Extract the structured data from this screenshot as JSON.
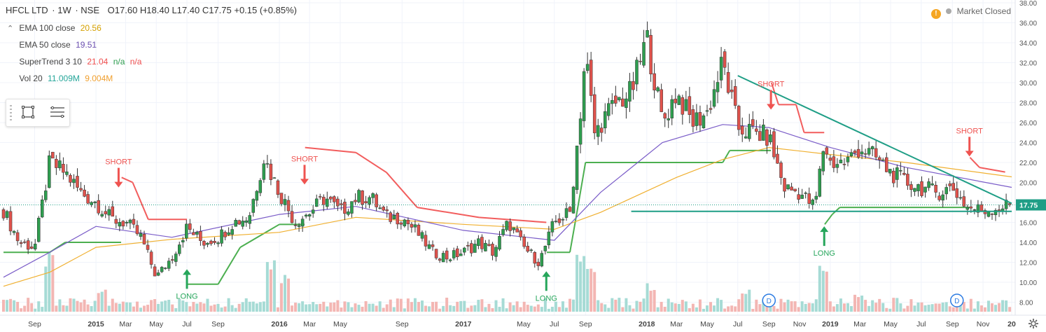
{
  "header": {
    "symbol": "HFCL LTD",
    "interval": "1W",
    "exchange": "NSE",
    "ohlc": "O17.60  H18.40  L17.40  C17.75  +0.15 (+0.85%)"
  },
  "indicators": [
    {
      "name": "EMA 100 close",
      "value": "20.56",
      "value2": "",
      "value3": "",
      "color": "#e0a000"
    },
    {
      "name": "EMA 50 close",
      "value": "19.51",
      "value2": "",
      "value3": "",
      "color": "#6b4fb0"
    },
    {
      "name": "SuperTrend 3 10",
      "value": "21.04",
      "value2": "n/a",
      "value3": "n/a",
      "color": "#ef4f4f"
    },
    {
      "name": "Vol 20",
      "value": "11.009M",
      "value2": "9.004M",
      "value3": "",
      "color": "#26a69a"
    }
  ],
  "market_status": "Market Closed",
  "price_tag": "17.75",
  "colors": {
    "up": "#2e9e4f",
    "down": "#e0524c",
    "ema100": "#f0b030",
    "ema50": "#7a5cc8",
    "st_up": "#4caf50",
    "st_down": "#f25d5d",
    "trend": "#1f9e86",
    "vol": "#7fc9c3",
    "price_tag": "#1f9e86"
  },
  "chart_data": {
    "type": "candlestick",
    "title": "HFCL LTD · 1W · NSE",
    "ylim": [
      7.4,
      38.0
    ],
    "y_ticks": [
      "8.00",
      "10.00",
      "12.00",
      "14.00",
      "16.00",
      "18.00",
      "20.00",
      "22.00",
      "24.00",
      "26.00",
      "28.00",
      "30.00",
      "32.00",
      "34.00",
      "36.00",
      "38.00"
    ],
    "x_ticks": [
      "Sep",
      "2015",
      "Mar",
      "May",
      "Jul",
      "Sep",
      "2016",
      "Mar",
      "May",
      "Sep",
      "2017",
      "May",
      "Jul",
      "Sep",
      "2018",
      "Mar",
      "May",
      "Jul",
      "Sep",
      "Nov",
      "2019",
      "Mar",
      "May",
      "Jul",
      "Sep",
      "Nov",
      "20"
    ],
    "close_anchors": [
      {
        "d": "2014-07-01",
        "v": 17.2
      },
      {
        "d": "2014-08-01",
        "v": 14.0
      },
      {
        "d": "2014-09-01",
        "v": 13.5
      },
      {
        "d": "2014-10-01",
        "v": 22.0
      },
      {
        "d": "2014-11-01",
        "v": 21.0
      },
      {
        "d": "2014-12-01",
        "v": 19.0
      },
      {
        "d": "2015-01-01",
        "v": 18.0
      },
      {
        "d": "2015-02-01",
        "v": 16.3
      },
      {
        "d": "2015-03-01",
        "v": 16.0
      },
      {
        "d": "2015-04-01",
        "v": 14.5
      },
      {
        "d": "2015-05-01",
        "v": 10.5
      },
      {
        "d": "2015-06-01",
        "v": 12.5
      },
      {
        "d": "2015-07-01",
        "v": 15.5
      },
      {
        "d": "2015-08-01",
        "v": 14.0
      },
      {
        "d": "2015-09-01",
        "v": 14.5
      },
      {
        "d": "2015-10-01",
        "v": 16.0
      },
      {
        "d": "2015-11-01",
        "v": 16.5
      },
      {
        "d": "2015-12-01",
        "v": 22.5
      },
      {
        "d": "2016-01-01",
        "v": 19.0
      },
      {
        "d": "2016-02-01",
        "v": 16.0
      },
      {
        "d": "2016-03-01",
        "v": 17.0
      },
      {
        "d": "2016-04-01",
        "v": 18.5
      },
      {
        "d": "2016-05-01",
        "v": 17.0
      },
      {
        "d": "2016-06-01",
        "v": 18.5
      },
      {
        "d": "2016-07-01",
        "v": 18.5
      },
      {
        "d": "2016-08-01",
        "v": 16.5
      },
      {
        "d": "2016-09-01",
        "v": 16.5
      },
      {
        "d": "2016-10-01",
        "v": 15.0
      },
      {
        "d": "2016-11-01",
        "v": 13.0
      },
      {
        "d": "2016-12-01",
        "v": 12.5
      },
      {
        "d": "2017-01-01",
        "v": 13.0
      },
      {
        "d": "2017-02-01",
        "v": 14.0
      },
      {
        "d": "2017-03-01",
        "v": 13.0
      },
      {
        "d": "2017-04-01",
        "v": 16.0
      },
      {
        "d": "2017-05-01",
        "v": 13.5
      },
      {
        "d": "2017-06-01",
        "v": 12.0
      },
      {
        "d": "2017-07-01",
        "v": 16.0
      },
      {
        "d": "2017-08-01",
        "v": 17.0
      },
      {
        "d": "2017-08-20",
        "v": 26.0
      },
      {
        "d": "2017-09-01",
        "v": 33.0
      },
      {
        "d": "2017-09-20",
        "v": 24.5
      },
      {
        "d": "2017-10-01",
        "v": 26.0
      },
      {
        "d": "2017-11-01",
        "v": 28.0
      },
      {
        "d": "2017-12-01",
        "v": 29.0
      },
      {
        "d": "2018-01-01",
        "v": 34.5
      },
      {
        "d": "2018-02-01",
        "v": 26.0
      },
      {
        "d": "2018-03-01",
        "v": 29.0
      },
      {
        "d": "2018-04-01",
        "v": 26.0
      },
      {
        "d": "2018-05-01",
        "v": 27.0
      },
      {
        "d": "2018-06-01",
        "v": 32.0
      },
      {
        "d": "2018-07-01",
        "v": 25.5
      },
      {
        "d": "2018-08-01",
        "v": 25.0
      },
      {
        "d": "2018-09-01",
        "v": 24.5
      },
      {
        "d": "2018-10-01",
        "v": 19.5
      },
      {
        "d": "2018-11-01",
        "v": 19.0
      },
      {
        "d": "2018-12-01",
        "v": 17.5
      },
      {
        "d": "2018-12-20",
        "v": 24.0
      },
      {
        "d": "2019-01-01",
        "v": 22.0
      },
      {
        "d": "2019-02-01",
        "v": 22.0
      },
      {
        "d": "2019-03-01",
        "v": 23.5
      },
      {
        "d": "2019-04-01",
        "v": 22.5
      },
      {
        "d": "2019-05-01",
        "v": 21.0
      },
      {
        "d": "2019-06-01",
        "v": 20.0
      },
      {
        "d": "2019-07-01",
        "v": 19.5
      },
      {
        "d": "2019-08-01",
        "v": 19.0
      },
      {
        "d": "2019-09-01",
        "v": 19.5
      },
      {
        "d": "2019-10-01",
        "v": 17.5
      },
      {
        "d": "2019-11-01",
        "v": 17.2
      },
      {
        "d": "2019-12-01",
        "v": 17.5
      },
      {
        "d": "2019-12-28",
        "v": 17.75
      }
    ],
    "supertrend": [
      {
        "d": "2014-07-01",
        "v": 13.0,
        "dir": "up"
      },
      {
        "d": "2014-10-01",
        "v": 13.0,
        "dir": "up"
      },
      {
        "d": "2014-11-01",
        "v": 14.0,
        "dir": "up"
      },
      {
        "d": "2015-02-20",
        "v": 14.0,
        "dir": "up"
      },
      {
        "d": "2015-02-21",
        "v": 20.5,
        "dir": "down"
      },
      {
        "d": "2015-03-15",
        "v": 20.0,
        "dir": "down"
      },
      {
        "d": "2015-04-15",
        "v": 16.3,
        "dir": "down"
      },
      {
        "d": "2015-07-01",
        "v": 16.3,
        "dir": "down"
      },
      {
        "d": "2015-07-02",
        "v": 9.8,
        "dir": "up"
      },
      {
        "d": "2015-09-01",
        "v": 9.8,
        "dir": "up"
      },
      {
        "d": "2015-10-15",
        "v": 13.5,
        "dir": "up"
      },
      {
        "d": "2016-01-01",
        "v": 15.8,
        "dir": "up"
      },
      {
        "d": "2016-02-20",
        "v": 15.8,
        "dir": "up"
      },
      {
        "d": "2016-02-21",
        "v": 23.5,
        "dir": "down"
      },
      {
        "d": "2016-06-01",
        "v": 23.0,
        "dir": "down"
      },
      {
        "d": "2016-08-01",
        "v": 21.0,
        "dir": "down"
      },
      {
        "d": "2016-10-01",
        "v": 17.5,
        "dir": "down"
      },
      {
        "d": "2017-02-01",
        "v": 16.5,
        "dir": "down"
      },
      {
        "d": "2017-06-15",
        "v": 16.0,
        "dir": "down"
      },
      {
        "d": "2017-06-16",
        "v": 13.0,
        "dir": "up"
      },
      {
        "d": "2017-08-01",
        "v": 13.0,
        "dir": "up"
      },
      {
        "d": "2017-08-15",
        "v": 17.0,
        "dir": "up"
      },
      {
        "d": "2017-09-01",
        "v": 22.0,
        "dir": "up"
      },
      {
        "d": "2018-06-01",
        "v": 22.0,
        "dir": "up"
      },
      {
        "d": "2018-06-15",
        "v": 23.2,
        "dir": "up"
      },
      {
        "d": "2018-09-05",
        "v": 23.2,
        "dir": "up"
      },
      {
        "d": "2018-09-06",
        "v": 30.0,
        "dir": "down"
      },
      {
        "d": "2018-09-20",
        "v": 27.8,
        "dir": "down"
      },
      {
        "d": "2018-10-25",
        "v": 27.8,
        "dir": "down"
      },
      {
        "d": "2018-11-10",
        "v": 25.0,
        "dir": "down"
      },
      {
        "d": "2018-12-20",
        "v": 25.0,
        "dir": "down"
      },
      {
        "d": "2018-12-21",
        "v": 15.8,
        "dir": "up"
      },
      {
        "d": "2019-01-05",
        "v": 16.8,
        "dir": "up"
      },
      {
        "d": "2019-01-20",
        "v": 17.5,
        "dir": "up"
      },
      {
        "d": "2019-10-05",
        "v": 17.5,
        "dir": "up"
      },
      {
        "d": "2019-10-06",
        "v": 22.5,
        "dir": "down"
      },
      {
        "d": "2019-10-25",
        "v": 21.5,
        "dir": "down"
      },
      {
        "d": "2019-12-15",
        "v": 21.04,
        "dir": "down"
      }
    ],
    "ema100_anchors": [
      {
        "d": "2014-07-01",
        "v": 9.6
      },
      {
        "d": "2014-10-01",
        "v": 11.0
      },
      {
        "d": "2015-01-01",
        "v": 13.5
      },
      {
        "d": "2015-06-01",
        "v": 14.3
      },
      {
        "d": "2016-01-01",
        "v": 15.0
      },
      {
        "d": "2016-06-01",
        "v": 16.5
      },
      {
        "d": "2017-01-01",
        "v": 15.8
      },
      {
        "d": "2017-07-01",
        "v": 15.3
      },
      {
        "d": "2017-10-01",
        "v": 17.0
      },
      {
        "d": "2018-03-01",
        "v": 20.5
      },
      {
        "d": "2018-06-01",
        "v": 22.3
      },
      {
        "d": "2018-09-01",
        "v": 23.5
      },
      {
        "d": "2019-01-01",
        "v": 22.8
      },
      {
        "d": "2019-06-01",
        "v": 22.0
      },
      {
        "d": "2019-12-28",
        "v": 20.56
      }
    ],
    "ema50_anchors": [
      {
        "d": "2014-07-01",
        "v": 10.5
      },
      {
        "d": "2014-10-01",
        "v": 13.0
      },
      {
        "d": "2015-01-01",
        "v": 15.6
      },
      {
        "d": "2015-06-01",
        "v": 14.5
      },
      {
        "d": "2016-01-01",
        "v": 16.8
      },
      {
        "d": "2016-06-01",
        "v": 17.6
      },
      {
        "d": "2017-01-01",
        "v": 15.2
      },
      {
        "d": "2017-07-01",
        "v": 14.2
      },
      {
        "d": "2017-10-01",
        "v": 19.0
      },
      {
        "d": "2018-02-01",
        "v": 24.0
      },
      {
        "d": "2018-06-01",
        "v": 25.8
      },
      {
        "d": "2018-09-01",
        "v": 25.5
      },
      {
        "d": "2019-01-01",
        "v": 23.5
      },
      {
        "d": "2019-06-01",
        "v": 21.5
      },
      {
        "d": "2019-12-28",
        "v": 19.51
      }
    ],
    "trendlines": [
      {
        "from": {
          "d": "2018-07-01",
          "v": 30.7
        },
        "to": {
          "d": "2019-12-28",
          "v": 17.9
        }
      },
      {
        "from": {
          "d": "2017-12-01",
          "v": 17.1
        },
        "to": {
          "d": "2019-12-28",
          "v": 17.1
        }
      }
    ],
    "signals": [
      {
        "d": "2015-02-15",
        "label": "SHORT",
        "type": "short",
        "v": 19.5
      },
      {
        "d": "2015-07-01",
        "label": "LONG",
        "type": "long",
        "v": 11.3
      },
      {
        "d": "2016-02-20",
        "label": "SHORT",
        "type": "short",
        "v": 19.8
      },
      {
        "d": "2017-06-15",
        "label": "LONG",
        "type": "long",
        "v": 11.1
      },
      {
        "d": "2018-09-05",
        "label": "SHORT",
        "type": "short",
        "v": 27.3
      },
      {
        "d": "2018-12-20",
        "label": "LONG",
        "type": "long",
        "v": 15.6
      },
      {
        "d": "2019-10-05",
        "label": "SHORT",
        "type": "short",
        "v": 22.6
      }
    ],
    "events": [
      {
        "d": "2018-09-01",
        "label": "D"
      },
      {
        "d": "2019-09-10",
        "label": "D"
      }
    ],
    "volume_spikes": [
      {
        "d": "2014-10-01",
        "v": 0.9
      },
      {
        "d": "2015-01-15",
        "v": 0.4
      },
      {
        "d": "2015-12-15",
        "v": 0.85
      },
      {
        "d": "2016-01-15",
        "v": 0.6
      },
      {
        "d": "2017-08-25",
        "v": 1.0
      },
      {
        "d": "2017-09-10",
        "v": 0.7
      },
      {
        "d": "2018-01-10",
        "v": 0.45
      },
      {
        "d": "2018-07-15",
        "v": 0.35
      },
      {
        "d": "2018-12-20",
        "v": 0.75
      },
      {
        "d": "2019-03-01",
        "v": 0.3
      }
    ]
  }
}
